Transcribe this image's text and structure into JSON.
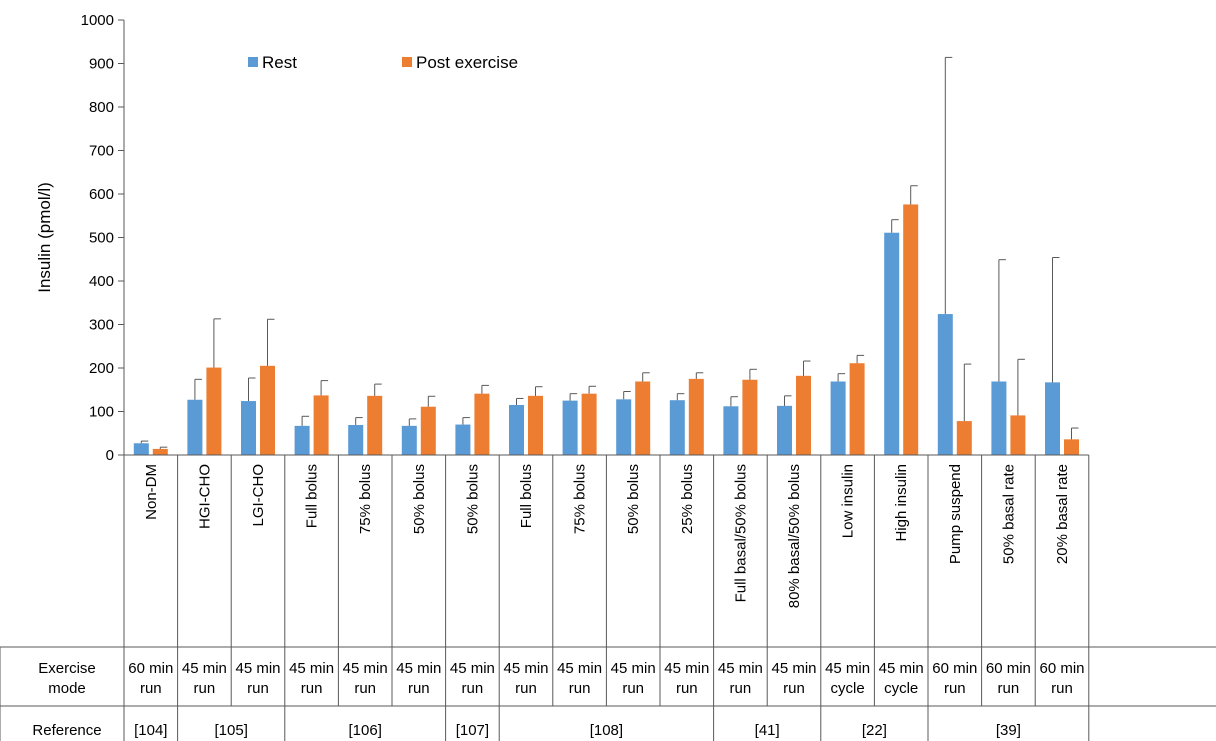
{
  "chart_data": {
    "type": "bar",
    "ylabel": "Insulin (pmol/l)",
    "ylim": [
      0,
      1000
    ],
    "yticks": [
      0,
      100,
      200,
      300,
      400,
      500,
      600,
      700,
      800,
      900,
      1000
    ],
    "legend": {
      "placement": "top-left"
    },
    "categories": [
      "Non-DM",
      "HGI-CHO",
      "LGI-CHO",
      "Full bolus",
      "75% bolus",
      "50% bolus",
      "50% bolus",
      "Full bolus",
      "75% bolus",
      "50% bolus",
      "25% bolus",
      "Full basal/50% bolus",
      "80% basal/50% bolus",
      "Low insulin",
      "High insulin",
      "Pump suspend",
      "50% basal rate",
      "20% basal rate"
    ],
    "series": [
      {
        "name": "Rest",
        "color": "#5b9bd5",
        "values": [
          27,
          127,
          124,
          67,
          69,
          67,
          70,
          115,
          125,
          128,
          126,
          112,
          113,
          169,
          511,
          324,
          169,
          167
        ],
        "error": [
          5,
          47,
          53,
          22,
          17,
          16,
          16,
          15,
          16,
          18,
          15,
          22,
          23,
          18,
          30,
          590,
          280,
          287
        ]
      },
      {
        "name": "Post exercise",
        "color": "#ed7d31",
        "values": [
          14,
          201,
          205,
          137,
          136,
          111,
          141,
          136,
          141,
          169,
          175,
          173,
          182,
          211,
          576,
          78,
          91,
          36
        ],
        "error": [
          4,
          112,
          107,
          34,
          27,
          24,
          19,
          21,
          17,
          20,
          14,
          24,
          34,
          18,
          43,
          131,
          129,
          26
        ]
      }
    ],
    "table": {
      "row1_label": [
        "Exercise",
        "mode"
      ],
      "row2_label": "Reference",
      "exercise_mode": [
        [
          "60 min",
          "run"
        ],
        [
          "45 min",
          "run"
        ],
        [
          "45 min",
          "run"
        ],
        [
          "45 min",
          "run"
        ],
        [
          "45 min",
          "run"
        ],
        [
          "45 min",
          "run"
        ],
        [
          "45 min",
          "run"
        ],
        [
          "45 min",
          "run"
        ],
        [
          "45 min",
          "run"
        ],
        [
          "45 min",
          "run"
        ],
        [
          "45 min",
          "run"
        ],
        [
          "45 min",
          "run"
        ],
        [
          "45 min",
          "run"
        ],
        [
          "45 min",
          "cycle"
        ],
        [
          "45 min",
          "cycle"
        ],
        [
          "60 min",
          "run"
        ],
        [
          "60 min",
          "run"
        ],
        [
          "60 min",
          "run"
        ]
      ],
      "references": [
        {
          "label": "[104]",
          "start": 0,
          "end": 0
        },
        {
          "label": "[105]",
          "start": 1,
          "end": 2
        },
        {
          "label": "[106]",
          "start": 3,
          "end": 5
        },
        {
          "label": "[107]",
          "start": 6,
          "end": 6
        },
        {
          "label": "[108]",
          "start": 7,
          "end": 10
        },
        {
          "label": "[41]",
          "start": 11,
          "end": 12
        },
        {
          "label": "[22]",
          "start": 13,
          "end": 14
        },
        {
          "label": "[39]",
          "start": 15,
          "end": 17
        }
      ]
    }
  }
}
